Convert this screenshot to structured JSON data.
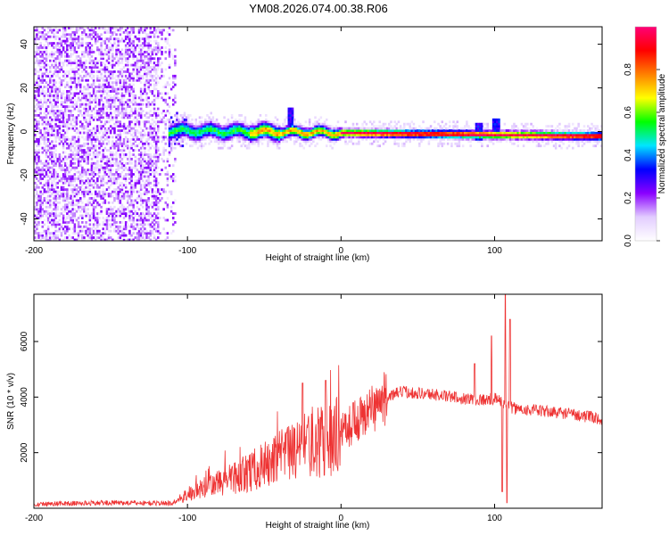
{
  "title": "YM08.2026.074.00.38.R06",
  "chart_data": [
    {
      "type": "heatmap",
      "name": "spectrogram",
      "xlabel": "Height of straight line (km)",
      "ylabel": "Frequency (Hz)",
      "xlim": [
        -200,
        170
      ],
      "ylim": [
        -50,
        48
      ],
      "x_ticks": [
        -200,
        -100,
        0,
        100
      ],
      "x_tick_labels": [
        "-200",
        "-100",
        "0",
        "100"
      ],
      "y_ticks": [
        -40,
        -20,
        0,
        20,
        40
      ],
      "y_tick_labels": [
        "-40",
        "-20",
        "0",
        "20",
        "40"
      ],
      "noise_region_x": [
        -200,
        -108
      ],
      "signal_band": {
        "x_start": -112,
        "x_end": 170,
        "center_freq_at_start": 0.5,
        "center_freq_at_end": -2,
        "spikes": [
          {
            "x": -33,
            "freq": 7
          },
          {
            "x": 90,
            "freq": 0
          },
          {
            "x": 101,
            "freq": 2
          }
        ]
      },
      "colorbar": {
        "label": "Normalized spectral amplitude",
        "ticks": [
          0.0,
          0.2,
          0.4,
          0.6,
          0.8
        ],
        "tick_labels": [
          "0.0",
          "0.2",
          "0.4",
          "0.6",
          "0.8"
        ],
        "range": [
          0,
          1
        ],
        "colors": [
          "#ffffff",
          "#e2ccff",
          "#8a00ff",
          "#0000ff",
          "#00e5ff",
          "#00ff00",
          "#ffff00",
          "#ff8000",
          "#ff0000",
          "#ff0077"
        ]
      }
    },
    {
      "type": "line",
      "name": "snr",
      "xlabel": "Height of straight line (km)",
      "ylabel": "SNR (10 * v/v)",
      "xlim": [
        -200,
        170
      ],
      "ylim": [
        0,
        7700
      ],
      "x_ticks": [
        -200,
        -100,
        0,
        100
      ],
      "x_tick_labels": [
        "-200",
        "-100",
        "0",
        "100"
      ],
      "y_ticks": [
        2000,
        4000,
        6000
      ],
      "y_tick_labels": [
        "2000",
        "4000",
        "6000"
      ],
      "color": "#ee3333",
      "envelope": [
        [
          -200,
          150
        ],
        [
          -150,
          200
        ],
        [
          -110,
          180
        ],
        [
          -100,
          500
        ],
        [
          -80,
          900
        ],
        [
          -60,
          1300
        ],
        [
          -40,
          1800
        ],
        [
          -20,
          2300
        ],
        [
          0,
          2700
        ],
        [
          20,
          3600
        ],
        [
          30,
          4000
        ],
        [
          40,
          4200
        ],
        [
          60,
          4100
        ],
        [
          80,
          3950
        ],
        [
          95,
          3900
        ],
        [
          100,
          3950
        ],
        [
          105,
          3800
        ],
        [
          112,
          3600
        ],
        [
          130,
          3500
        ],
        [
          150,
          3400
        ],
        [
          170,
          3200
        ]
      ],
      "spikes": [
        {
          "x": -25,
          "y": 4500
        },
        {
          "x": -10,
          "y": 4600
        },
        {
          "x": 8,
          "y": 3800
        },
        {
          "x": 87,
          "y": 5200
        },
        {
          "x": 98,
          "y": 6200
        },
        {
          "x": 107,
          "y": 7700
        },
        {
          "x": 110,
          "y": 6800
        },
        {
          "x": 108,
          "y": 200
        },
        {
          "x": 105,
          "y": 600
        }
      ]
    }
  ]
}
